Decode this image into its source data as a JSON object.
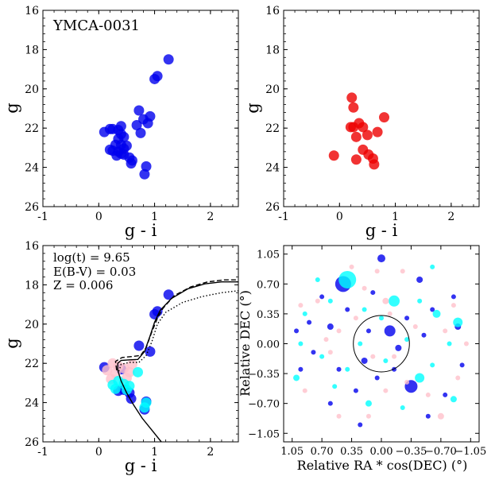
{
  "chart_data": [
    {
      "type": "scatter",
      "title": "YMCA-0031",
      "xlabel": "g - i",
      "ylabel": "g",
      "xlim": [
        -1,
        2.5
      ],
      "ylim": [
        26,
        16
      ],
      "xticks": [
        -1,
        0,
        1,
        2
      ],
      "yticks": [
        16,
        18,
        20,
        22,
        24,
        26
      ],
      "series": [
        {
          "color": "#0000ee",
          "points": [
            [
              1.25,
              18.5
            ],
            [
              1.05,
              19.35
            ],
            [
              1.0,
              19.5
            ],
            [
              0.92,
              21.4
            ],
            [
              0.88,
              21.75
            ],
            [
              0.8,
              21.55
            ],
            [
              0.72,
              21.1
            ],
            [
              0.68,
              21.85
            ],
            [
              0.75,
              22.25
            ],
            [
              0.4,
              21.9
            ],
            [
              0.35,
              22.1
            ],
            [
              0.25,
              22.05
            ],
            [
              0.2,
              22.05
            ],
            [
              0.1,
              22.2
            ],
            [
              0.4,
              22.3
            ],
            [
              0.35,
              22.55
            ],
            [
              0.45,
              22.45
            ],
            [
              0.3,
              22.85
            ],
            [
              0.4,
              22.85
            ],
            [
              0.5,
              22.9
            ],
            [
              0.45,
              23.05
            ],
            [
              0.35,
              23.2
            ],
            [
              0.25,
              23.15
            ],
            [
              0.2,
              23.1
            ],
            [
              0.4,
              23.3
            ],
            [
              0.32,
              23.4
            ],
            [
              0.45,
              23.35
            ],
            [
              0.55,
              23.5
            ],
            [
              0.6,
              23.65
            ],
            [
              0.58,
              23.8
            ],
            [
              0.85,
              23.95
            ],
            [
              0.82,
              24.35
            ]
          ]
        }
      ]
    },
    {
      "type": "scatter",
      "xlabel": "g - i",
      "ylabel": "g",
      "xlim": [
        -1,
        2.5
      ],
      "ylim": [
        26,
        16
      ],
      "xticks": [
        -1,
        0,
        1,
        2
      ],
      "yticks": [
        16,
        18,
        20,
        22,
        24,
        26
      ],
      "series": [
        {
          "color": "#ee0000",
          "points": [
            [
              0.22,
              20.45
            ],
            [
              0.8,
              21.45
            ],
            [
              0.25,
              20.95
            ],
            [
              0.35,
              21.75
            ],
            [
              0.25,
              21.95
            ],
            [
              0.2,
              21.95
            ],
            [
              0.42,
              21.95
            ],
            [
              0.68,
              22.2
            ],
            [
              0.3,
              22.45
            ],
            [
              0.5,
              22.35
            ],
            [
              0.42,
              23.1
            ],
            [
              0.52,
              23.35
            ],
            [
              0.3,
              23.6
            ],
            [
              0.6,
              23.55
            ],
            [
              0.62,
              23.85
            ],
            [
              -0.1,
              23.4
            ]
          ]
        }
      ]
    },
    {
      "type": "scatter",
      "xlabel": "g - i",
      "ylabel": "g",
      "xlim": [
        -1,
        2.5
      ],
      "ylim": [
        26,
        16
      ],
      "xticks": [
        -1,
        0,
        1,
        2
      ],
      "yticks": [
        16,
        18,
        20,
        22,
        24,
        26
      ],
      "annotations": [
        "log(t) = 9.65",
        "E(B-V) = 0.03",
        "Z = 0.006"
      ],
      "series": [
        {
          "color": "#0000ee",
          "points": [
            [
              1.25,
              18.5
            ],
            [
              1.05,
              19.35
            ],
            [
              1.0,
              19.5
            ],
            [
              0.92,
              21.4
            ],
            [
              0.72,
              21.1
            ],
            [
              0.1,
              22.2
            ],
            [
              0.35,
              23.4
            ],
            [
              0.45,
              23.35
            ],
            [
              0.55,
              23.5
            ],
            [
              0.58,
              23.8
            ],
            [
              0.82,
              24.35
            ],
            [
              0.85,
              23.95
            ],
            [
              0.4,
              22.3
            ]
          ]
        },
        {
          "color": "#ffc0cb",
          "points": [
            [
              0.25,
              22.0
            ],
            [
              0.35,
              22.15
            ],
            [
              0.15,
              22.35
            ],
            [
              0.3,
              22.5
            ],
            [
              0.45,
              22.25
            ],
            [
              0.55,
              22.45
            ],
            [
              0.6,
              22.05
            ],
            [
              0.22,
              22.8
            ],
            [
              0.5,
              22.75
            ]
          ]
        },
        {
          "color": "#00ffff",
          "points": [
            [
              0.25,
              23.1
            ],
            [
              0.35,
              22.9
            ],
            [
              0.45,
              23.05
            ],
            [
              0.55,
              23.15
            ],
            [
              0.3,
              23.3
            ],
            [
              0.5,
              23.35
            ],
            [
              0.7,
              22.45
            ],
            [
              0.85,
              24.0
            ],
            [
              0.82,
              24.25
            ]
          ]
        },
        {
          "name": "isochrone",
          "color": "#000000",
          "style": "solid",
          "points": [
            [
              1.12,
              26.0
            ],
            [
              0.95,
              25.4
            ],
            [
              0.78,
              24.8
            ],
            [
              0.62,
              24.1
            ],
            [
              0.5,
              23.5
            ],
            [
              0.4,
              22.9
            ],
            [
              0.34,
              22.35
            ],
            [
              0.34,
              22.0
            ],
            [
              0.4,
              21.85
            ],
            [
              0.55,
              21.82
            ],
            [
              0.7,
              21.8
            ],
            [
              0.82,
              21.4
            ],
            [
              0.92,
              20.6
            ],
            [
              1.0,
              19.9
            ],
            [
              1.1,
              19.3
            ],
            [
              1.3,
              18.7
            ],
            [
              1.6,
              18.2
            ],
            [
              1.9,
              17.95
            ],
            [
              2.2,
              17.85
            ],
            [
              2.5,
              17.85
            ]
          ]
        },
        {
          "name": "isochrone-dashed",
          "color": "#000000",
          "style": "dashed",
          "points": [
            [
              0.32,
              22.35
            ],
            [
              0.3,
              21.9
            ],
            [
              0.42,
              21.7
            ],
            [
              0.6,
              21.65
            ],
            [
              0.75,
              21.6
            ],
            [
              0.85,
              21.2
            ],
            [
              0.95,
              20.4
            ],
            [
              1.05,
              19.7
            ],
            [
              1.15,
              19.2
            ],
            [
              1.35,
              18.55
            ],
            [
              1.65,
              18.1
            ],
            [
              1.95,
              17.85
            ],
            [
              2.25,
              17.75
            ],
            [
              2.5,
              17.75
            ]
          ]
        },
        {
          "name": "isochrone-dotted",
          "color": "#000000",
          "style": "dotted",
          "points": [
            [
              0.36,
              22.4
            ],
            [
              0.4,
              22.05
            ],
            [
              0.55,
              21.95
            ],
            [
              0.72,
              21.95
            ],
            [
              0.85,
              21.6
            ],
            [
              0.95,
              20.9
            ],
            [
              1.05,
              20.0
            ],
            [
              1.2,
              19.4
            ],
            [
              1.5,
              18.9
            ],
            [
              1.85,
              18.6
            ],
            [
              2.2,
              18.4
            ],
            [
              2.5,
              18.3
            ]
          ]
        }
      ]
    },
    {
      "type": "scatter",
      "xlabel": "Relative RA * cos(DEC) (°)",
      "ylabel": "Relative DEC (°)",
      "xlim": [
        1.15,
        -1.15
      ],
      "ylim": [
        -1.15,
        1.15
      ],
      "xticks": [
        "1.05",
        "0.70",
        "0.35",
        "0.00",
        "−0.35",
        "−0.70",
        "−1.05"
      ],
      "yticks": [
        "1.05",
        "0.70",
        "0.35",
        "0.00",
        "−0.35",
        "−0.70",
        "−1.05"
      ],
      "circle_radius": 0.33,
      "series": [
        {
          "color": "#0000ee",
          "points": [
            [
              0.45,
              0.7,
              10
            ],
            [
              0.0,
              1.0,
              5
            ],
            [
              -0.45,
              0.75,
              4
            ],
            [
              -0.1,
              0.15,
              7
            ],
            [
              -0.35,
              -0.5,
              8
            ],
            [
              0.6,
              0.2,
              4
            ],
            [
              0.8,
              -0.1,
              3
            ],
            [
              0.95,
              -0.3,
              3
            ],
            [
              0.2,
              -0.2,
              4
            ],
            [
              -0.6,
              0.4,
              3
            ],
            [
              -0.9,
              0.2,
              4
            ],
            [
              -0.95,
              -0.25,
              3
            ],
            [
              0.1,
              0.6,
              3
            ],
            [
              0.3,
              -0.55,
              3
            ],
            [
              -0.2,
              -0.05,
              4
            ],
            [
              -0.5,
              0.1,
              3
            ],
            [
              0.5,
              -0.3,
              3
            ],
            [
              -0.75,
              -0.6,
              3
            ],
            [
              0.7,
              0.55,
              3
            ],
            [
              0.15,
              0.15,
              3
            ],
            [
              -0.3,
              0.3,
              3
            ],
            [
              0.4,
              0.4,
              3
            ],
            [
              0.85,
              0.25,
              3
            ],
            [
              -0.15,
              -0.3,
              3
            ],
            [
              0.05,
              -0.4,
              3
            ],
            [
              0.6,
              -0.7,
              3
            ],
            [
              -0.55,
              -0.85,
              3
            ],
            [
              0.25,
              -0.95,
              3
            ],
            [
              -0.85,
              0.55,
              3
            ],
            [
              1.0,
              0.15,
              3
            ]
          ],
          "sizes_note": "third value is marker radius"
        },
        {
          "color": "#00ffff",
          "points": [
            [
              0.4,
              0.75,
              11
            ],
            [
              -0.15,
              0.5,
              7
            ],
            [
              -0.45,
              -0.4,
              6
            ],
            [
              -0.65,
              0.35,
              5
            ],
            [
              -0.9,
              0.25,
              6
            ],
            [
              1.0,
              -0.4,
              4
            ],
            [
              0.9,
              0.35,
              3
            ],
            [
              0.7,
              -0.15,
              3
            ],
            [
              0.4,
              -0.3,
              3
            ],
            [
              0.15,
              -0.7,
              4
            ],
            [
              -0.3,
              0.05,
              3
            ],
            [
              -0.6,
              -0.25,
              3
            ],
            [
              -0.85,
              -0.65,
              4
            ],
            [
              -0.6,
              0.9,
              3
            ],
            [
              0.75,
              0.75,
              3
            ],
            [
              0.0,
              0.3,
              3
            ],
            [
              0.25,
              0.0,
              3
            ],
            [
              -0.8,
              0.0,
              3
            ],
            [
              0.55,
              -0.5,
              3
            ],
            [
              -0.25,
              -0.75,
              3
            ],
            [
              0.6,
              0.5,
              3
            ],
            [
              0.95,
              0.0,
              3
            ],
            [
              -0.45,
              0.5,
              3
            ],
            [
              0.2,
              0.4,
              3
            ],
            [
              -0.05,
              -0.2,
              3
            ]
          ]
        },
        {
          "color": "#ffc0cb",
          "points": [
            [
              -0.05,
              0.5,
              4
            ],
            [
              0.5,
              0.15,
              3
            ],
            [
              -1.0,
              0.0,
              3
            ],
            [
              0.35,
              0.9,
              3
            ],
            [
              -0.25,
              0.85,
              3
            ],
            [
              0.75,
              0.5,
              3
            ],
            [
              0.5,
              -0.85,
              3
            ],
            [
              -0.7,
              -0.85,
              4
            ],
            [
              -0.05,
              -0.55,
              3
            ],
            [
              0.9,
              -0.55,
              3
            ],
            [
              -0.75,
              0.15,
              3
            ],
            [
              0.2,
              0.65,
              3
            ],
            [
              -0.4,
              0.2,
              3
            ],
            [
              0.1,
              -0.15,
              3
            ],
            [
              -0.15,
              -0.15,
              3
            ],
            [
              0.6,
              -0.1,
              3
            ],
            [
              -0.9,
              -0.4,
              3
            ],
            [
              0.05,
              0.85,
              3
            ],
            [
              -0.55,
              -0.6,
              3
            ],
            [
              0.3,
              0.3,
              3
            ],
            [
              0.95,
              0.45,
              3
            ],
            [
              -0.3,
              -0.45,
              3
            ],
            [
              0.15,
              -0.85,
              3
            ],
            [
              -0.85,
              0.45,
              3
            ],
            [
              0.65,
              0.05,
              3
            ],
            [
              -0.1,
              0.35,
              3
            ]
          ]
        }
      ]
    }
  ]
}
